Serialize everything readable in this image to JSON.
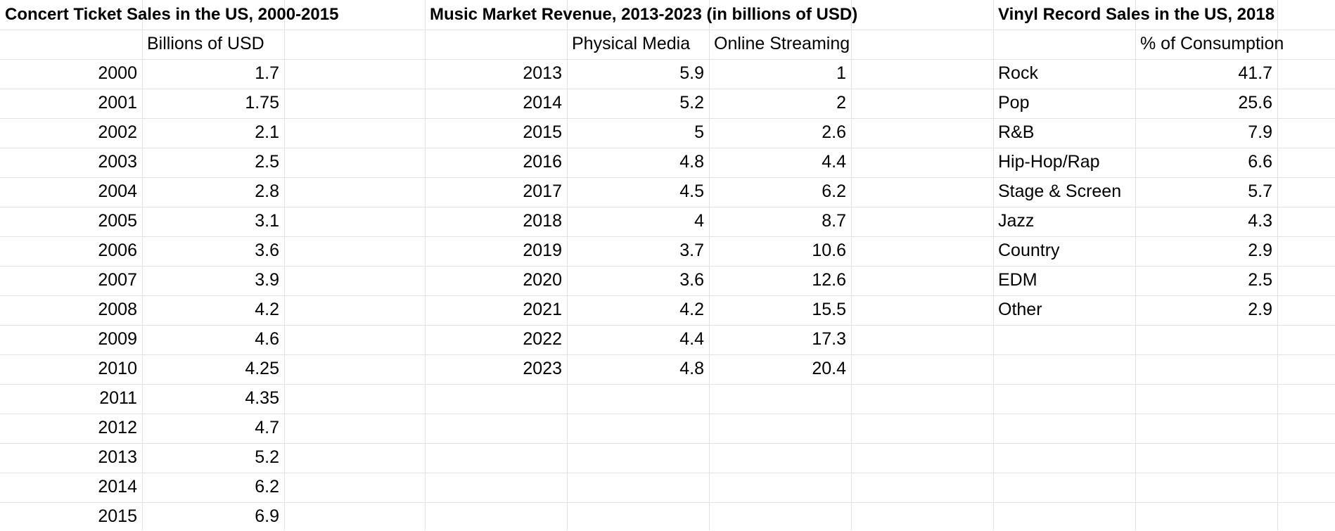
{
  "concert": {
    "title": "Concert Ticket Sales in the US, 2000-2015",
    "header": "Billions of USD",
    "rows": [
      {
        "year": "2000",
        "value": "1.7"
      },
      {
        "year": "2001",
        "value": "1.75"
      },
      {
        "year": "2002",
        "value": "2.1"
      },
      {
        "year": "2003",
        "value": "2.5"
      },
      {
        "year": "2004",
        "value": "2.8"
      },
      {
        "year": "2005",
        "value": "3.1"
      },
      {
        "year": "2006",
        "value": "3.6"
      },
      {
        "year": "2007",
        "value": "3.9"
      },
      {
        "year": "2008",
        "value": "4.2"
      },
      {
        "year": "2009",
        "value": "4.6"
      },
      {
        "year": "2010",
        "value": "4.25"
      },
      {
        "year": "2011",
        "value": "4.35"
      },
      {
        "year": "2012",
        "value": "4.7"
      },
      {
        "year": "2013",
        "value": "5.2"
      },
      {
        "year": "2014",
        "value": "6.2"
      },
      {
        "year": "2015",
        "value": "6.9"
      }
    ]
  },
  "music": {
    "title": "Music Market Revenue, 2013-2023 (in billions of USD)",
    "header_physical": "Physical Media",
    "header_streaming": "Online Streaming",
    "rows": [
      {
        "year": "2013",
        "physical": "5.9",
        "streaming": "1"
      },
      {
        "year": "2014",
        "physical": "5.2",
        "streaming": "2"
      },
      {
        "year": "2015",
        "physical": "5",
        "streaming": "2.6"
      },
      {
        "year": "2016",
        "physical": "4.8",
        "streaming": "4.4"
      },
      {
        "year": "2017",
        "physical": "4.5",
        "streaming": "6.2"
      },
      {
        "year": "2018",
        "physical": "4",
        "streaming": "8.7"
      },
      {
        "year": "2019",
        "physical": "3.7",
        "streaming": "10.6"
      },
      {
        "year": "2020",
        "physical": "3.6",
        "streaming": "12.6"
      },
      {
        "year": "2021",
        "physical": "4.2",
        "streaming": "15.5"
      },
      {
        "year": "2022",
        "physical": "4.4",
        "streaming": "17.3"
      },
      {
        "year": "2023",
        "physical": "4.8",
        "streaming": "20.4"
      }
    ]
  },
  "vinyl": {
    "title": "Vinyl Record Sales in the US, 2018",
    "header": "% of Consumption",
    "rows": [
      {
        "genre": "Rock",
        "value": "41.7"
      },
      {
        "genre": "Pop",
        "value": "25.6"
      },
      {
        "genre": "R&B",
        "value": "7.9"
      },
      {
        "genre": "Hip-Hop/Rap",
        "value": "6.6"
      },
      {
        "genre": "Stage & Screen",
        "value": "5.7"
      },
      {
        "genre": "Jazz",
        "value": "4.3"
      },
      {
        "genre": "Country",
        "value": "2.9"
      },
      {
        "genre": "EDM",
        "value": "2.5"
      },
      {
        "genre": "Other",
        "value": "2.9"
      }
    ]
  },
  "colors": {
    "gridline": "#e2e2e2",
    "text": "#000000",
    "background": "#ffffff"
  }
}
